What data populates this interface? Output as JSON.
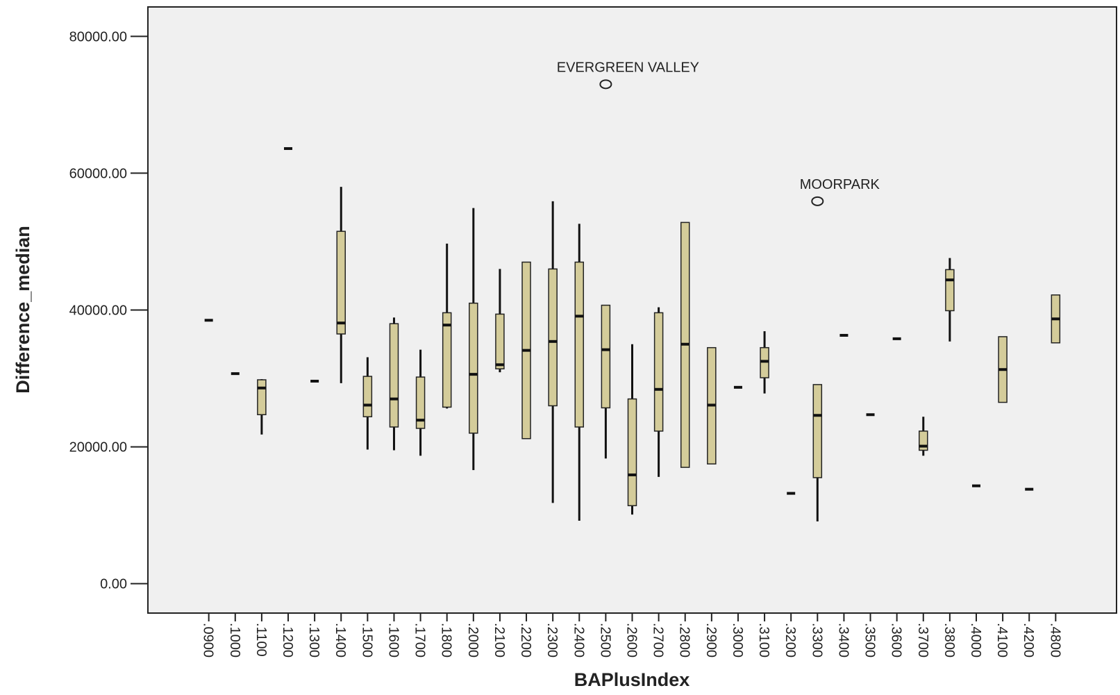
{
  "chart_data": {
    "type": "box",
    "x_label": "BAPlusIndex",
    "y_label": "Difference_median",
    "categories": [
      ".0900",
      ".1000",
      ".1100",
      ".1200",
      ".1300",
      ".1400",
      ".1500",
      ".1600",
      ".1700",
      ".1800",
      ".2000",
      ".2100",
      ".2200",
      ".2300",
      ".2400",
      ".2500",
      ".2600",
      ".2700",
      ".2800",
      ".2900",
      ".3000",
      ".3100",
      ".3200",
      ".3300",
      ".3400",
      ".3500",
      ".3600",
      ".3700",
      ".3800",
      ".4000",
      ".4100",
      ".4200",
      ".4800"
    ],
    "boxes": [
      {
        "min": 38500,
        "q1": 38500,
        "median": 38500,
        "q3": 38500,
        "max": 38500
      },
      {
        "min": 30700,
        "q1": 30700,
        "median": 30700,
        "q3": 30700,
        "max": 30700
      },
      {
        "min": 21800,
        "q1": 24700,
        "median": 28600,
        "q3": 29800,
        "max": 29900
      },
      {
        "min": 63600,
        "q1": 63600,
        "median": 63600,
        "q3": 63600,
        "max": 63600
      },
      {
        "min": 29600,
        "q1": 29600,
        "median": 29600,
        "q3": 29600,
        "max": 29600
      },
      {
        "min": 29300,
        "q1": 36500,
        "median": 38100,
        "q3": 51500,
        "max": 58000
      },
      {
        "min": 19600,
        "q1": 24400,
        "median": 26100,
        "q3": 30300,
        "max": 33100
      },
      {
        "min": 19500,
        "q1": 22900,
        "median": 27000,
        "q3": 38000,
        "max": 38900
      },
      {
        "min": 18700,
        "q1": 22700,
        "median": 23900,
        "q3": 30200,
        "max": 34200
      },
      {
        "min": 25600,
        "q1": 25800,
        "median": 37800,
        "q3": 39600,
        "max": 49700
      },
      {
        "min": 16600,
        "q1": 22000,
        "median": 30600,
        "q3": 41000,
        "max": 54900
      },
      {
        "min": 30900,
        "q1": 31400,
        "median": 32000,
        "q3": 39400,
        "max": 46000
      },
      {
        "min": 21200,
        "q1": 21200,
        "median": 34100,
        "q3": 47000,
        "max": 47000
      },
      {
        "min": 11800,
        "q1": 26000,
        "median": 35400,
        "q3": 46000,
        "max": 55900
      },
      {
        "min": 9200,
        "q1": 22900,
        "median": 39100,
        "q3": 47000,
        "max": 52600
      },
      {
        "min": 18300,
        "q1": 25700,
        "median": 34200,
        "q3": 40700,
        "max": 40700
      },
      {
        "min": 10100,
        "q1": 11400,
        "median": 15900,
        "q3": 27000,
        "max": 35000
      },
      {
        "min": 15600,
        "q1": 22300,
        "median": 28400,
        "q3": 39600,
        "max": 40400
      },
      {
        "min": 17000,
        "q1": 17000,
        "median": 35000,
        "q3": 52800,
        "max": 52800
      },
      {
        "min": 17500,
        "q1": 17500,
        "median": 26100,
        "q3": 34500,
        "max": 34500
      },
      {
        "min": 28700,
        "q1": 28700,
        "median": 28700,
        "q3": 28700,
        "max": 28700
      },
      {
        "min": 27800,
        "q1": 30100,
        "median": 32500,
        "q3": 34500,
        "max": 36900
      },
      {
        "min": 13200,
        "q1": 13200,
        "median": 13200,
        "q3": 13200,
        "max": 13200
      },
      {
        "min": 9100,
        "q1": 15500,
        "median": 24600,
        "q3": 29100,
        "max": 29100
      },
      {
        "min": 36300,
        "q1": 36300,
        "median": 36300,
        "q3": 36300,
        "max": 36300
      },
      {
        "min": 24700,
        "q1": 24700,
        "median": 24700,
        "q3": 24700,
        "max": 24700
      },
      {
        "min": 35800,
        "q1": 35800,
        "median": 35800,
        "q3": 35800,
        "max": 35800
      },
      {
        "min": 18700,
        "q1": 19500,
        "median": 20100,
        "q3": 22300,
        "max": 24400
      },
      {
        "min": 35400,
        "q1": 39900,
        "median": 44400,
        "q3": 45900,
        "max": 47600
      },
      {
        "min": 14300,
        "q1": 14300,
        "median": 14300,
        "q3": 14300,
        "max": 14300
      },
      {
        "min": 26500,
        "q1": 26500,
        "median": 31300,
        "q3": 36100,
        "max": 36100
      },
      {
        "min": 13800,
        "q1": 13800,
        "median": 13800,
        "q3": 13800,
        "max": 13800
      },
      {
        "min": 35200,
        "q1": 35200,
        "median": 38700,
        "q3": 42200,
        "max": 42200
      }
    ],
    "outliers": [
      {
        "category": ".2500",
        "value": 73000,
        "label": "EVERGREEN VALLEY"
      },
      {
        "category": ".3300",
        "value": 55900,
        "label": "MOORPARK"
      }
    ],
    "box_color": "#d4cc9a",
    "ylim": [
      -4300,
      84300
    ],
    "yticks": [
      {
        "value": 0,
        "label": "0.00"
      },
      {
        "value": 20000,
        "label": "20000.00"
      },
      {
        "value": 40000,
        "label": "40000.00"
      },
      {
        "value": 60000,
        "label": "60000.00"
      },
      {
        "value": 80000,
        "label": "80000.00"
      }
    ]
  }
}
